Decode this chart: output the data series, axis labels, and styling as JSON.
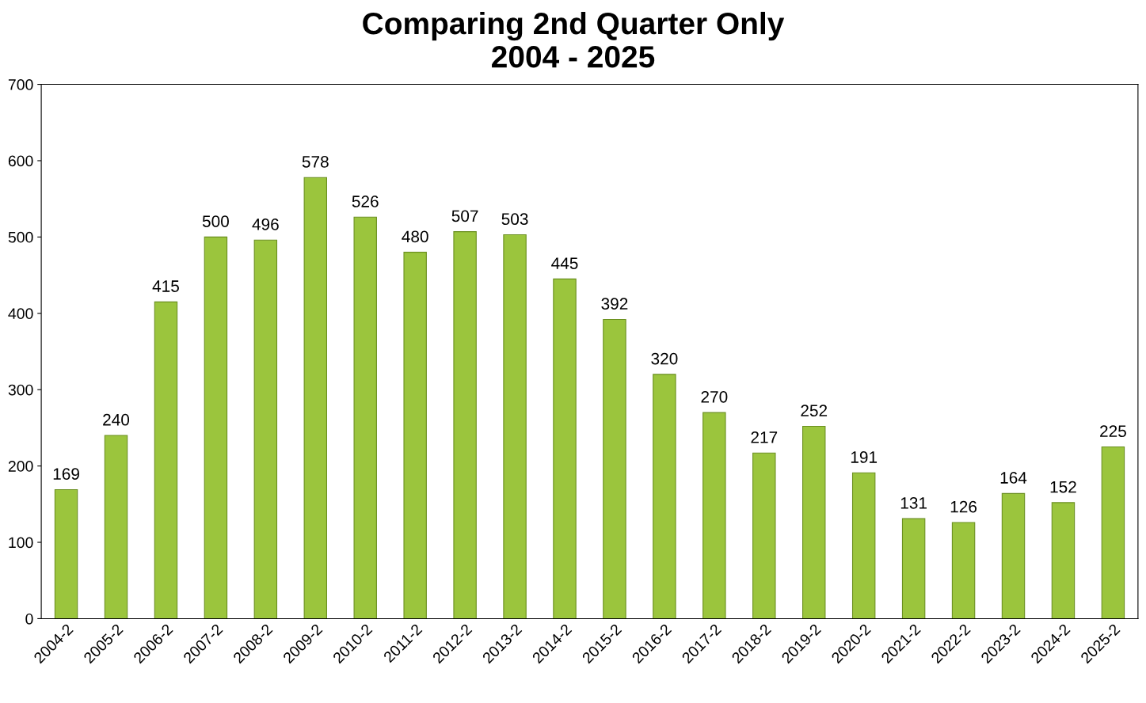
{
  "chart_data": {
    "type": "bar",
    "title": "Comparing 2nd Quarter Only\n2004 - 2025",
    "categories": [
      "2004-2",
      "2005-2",
      "2006-2",
      "2007-2",
      "2008-2",
      "2009-2",
      "2010-2",
      "2011-2",
      "2012-2",
      "2013-2",
      "2014-2",
      "2015-2",
      "2016-2",
      "2017-2",
      "2018-2",
      "2019-2",
      "2020-2",
      "2021-2",
      "2022-2",
      "2023-2",
      "2024-2",
      "2025-2"
    ],
    "values": [
      169,
      240,
      415,
      500,
      496,
      578,
      526,
      480,
      507,
      503,
      445,
      392,
      320,
      270,
      217,
      252,
      191,
      131,
      126,
      164,
      152,
      225
    ],
    "color": "#9bc53d",
    "ylim": [
      0,
      700
    ],
    "yticks": [
      0,
      100,
      200,
      300,
      400,
      500,
      600,
      700
    ],
    "data_labels": true,
    "grid": false,
    "legend": false
  }
}
